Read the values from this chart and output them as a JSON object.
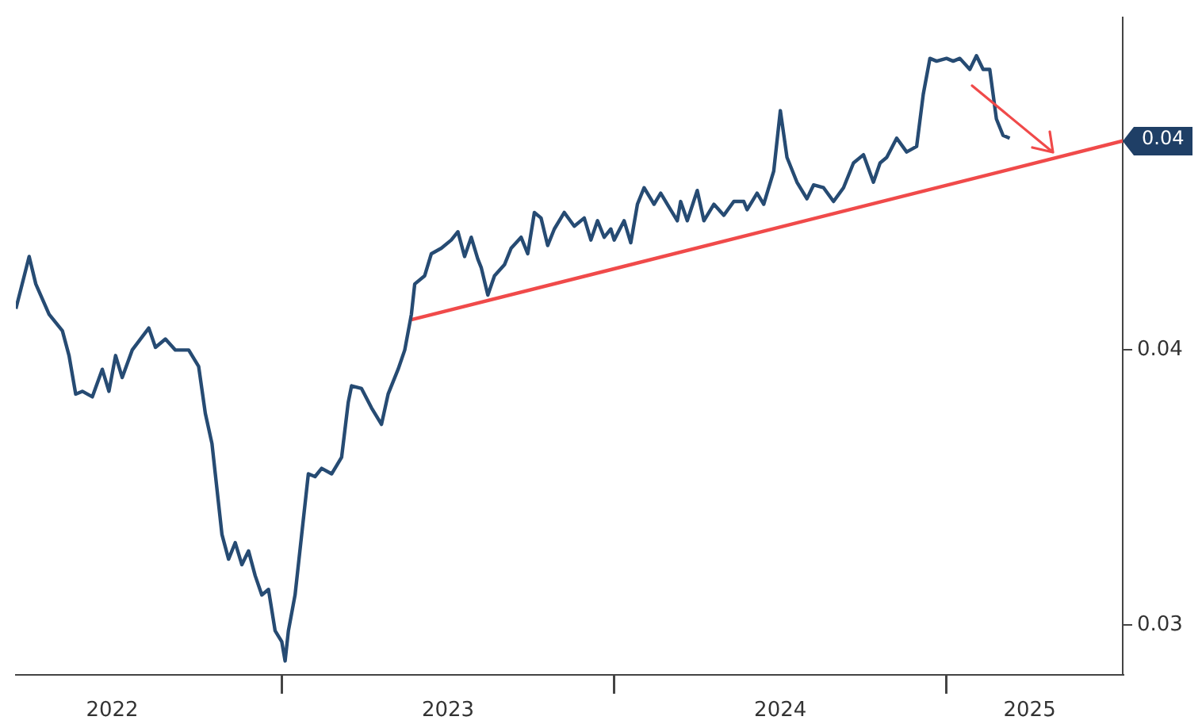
{
  "chart_data": {
    "type": "line",
    "xlim": [
      2022.2,
      2025.53
    ],
    "ylim": [
      0.0282,
      0.0521
    ],
    "xticks": [
      {
        "value": 2022.49,
        "label": "2022"
      },
      {
        "value": 2023,
        "label": null
      },
      {
        "value": 2023.5,
        "label": "2023"
      },
      {
        "value": 2024,
        "label": null
      },
      {
        "value": 2024.5,
        "label": "2024"
      },
      {
        "value": 2025,
        "label": null
      },
      {
        "value": 2025.25,
        "label": "2025"
      }
    ],
    "yticks": [
      0.04,
      0.03
    ],
    "grid": false,
    "legend": false,
    "marker": "none",
    "line_style": "solid",
    "annotations": [
      {
        "text": "0.04",
        "x": 2025.53,
        "y": 0.0476
      }
    ],
    "series": [
      {
        "color": "#264b73",
        "x": [
          2022.2,
          2022.24,
          2022.26,
          2022.3,
          2022.34,
          2022.36,
          2022.38,
          2022.4,
          2022.43,
          2022.46,
          2022.48,
          2022.5,
          2022.52,
          2022.55,
          2022.6,
          2022.62,
          2022.65,
          2022.68,
          2022.72,
          2022.75,
          2022.77,
          2022.79,
          2022.8,
          2022.82,
          2022.84,
          2022.86,
          2022.88,
          2022.9,
          2022.92,
          2022.94,
          2022.96,
          2022.98,
          2023.0,
          2023.01,
          2023.02,
          2023.04,
          2023.06,
          2023.08,
          2023.1,
          2023.12,
          2023.15,
          2023.18,
          2023.2,
          2023.21,
          2023.24,
          2023.27,
          2023.3,
          2023.32,
          2023.35,
          2023.37,
          2023.39,
          2023.4,
          2023.43,
          2023.45,
          2023.48,
          2023.51,
          2023.53,
          2023.55,
          2023.57,
          2023.59,
          2023.6,
          2023.62,
          2023.64,
          2023.67,
          2023.69,
          2023.72,
          2023.74,
          2023.76,
          2023.78,
          2023.8,
          2023.82,
          2023.85,
          2023.88,
          2023.91,
          2023.93,
          2023.95,
          2023.97,
          2023.99,
          2024.0,
          2024.03,
          2024.05,
          2024.07,
          2024.09,
          2024.12,
          2024.14,
          2024.16,
          2024.19,
          2024.2,
          2024.22,
          2024.25,
          2024.27,
          2024.3,
          2024.33,
          2024.36,
          2024.39,
          2024.4,
          2024.43,
          2024.45,
          2024.48,
          2024.5,
          2024.52,
          2024.55,
          2024.58,
          2024.6,
          2024.63,
          2024.66,
          2024.69,
          2024.72,
          2024.75,
          2024.78,
          2024.8,
          2024.82,
          2024.85,
          2024.88,
          2024.91,
          2024.93,
          2024.95,
          2024.97,
          2025.0,
          2025.02,
          2025.04,
          2025.07,
          2025.09,
          2025.11,
          2025.13,
          2025.15,
          2025.17,
          2025.19
        ],
        "values": [
          0.0415,
          0.0434,
          0.0424,
          0.0413,
          0.0407,
          0.0398,
          0.0384,
          0.0385,
          0.0383,
          0.0393,
          0.0385,
          0.0398,
          0.039,
          0.04,
          0.0408,
          0.0401,
          0.0404,
          0.04,
          0.04,
          0.0394,
          0.0377,
          0.0366,
          0.0355,
          0.0333,
          0.0324,
          0.033,
          0.0322,
          0.0327,
          0.0318,
          0.0311,
          0.0313,
          0.0298,
          0.0294,
          0.0287,
          0.0298,
          0.0311,
          0.0333,
          0.0355,
          0.0354,
          0.0357,
          0.0355,
          0.0361,
          0.0381,
          0.0387,
          0.0386,
          0.0379,
          0.0373,
          0.0384,
          0.0393,
          0.04,
          0.0413,
          0.0424,
          0.0427,
          0.0435,
          0.0437,
          0.044,
          0.0443,
          0.0434,
          0.0441,
          0.0433,
          0.043,
          0.042,
          0.0427,
          0.0431,
          0.0437,
          0.0441,
          0.0435,
          0.045,
          0.0448,
          0.0438,
          0.0444,
          0.045,
          0.0445,
          0.0448,
          0.044,
          0.0447,
          0.0441,
          0.0444,
          0.044,
          0.0447,
          0.0439,
          0.0453,
          0.0459,
          0.0453,
          0.0457,
          0.0453,
          0.0447,
          0.0454,
          0.0447,
          0.0458,
          0.0447,
          0.0453,
          0.0449,
          0.0454,
          0.0454,
          0.0451,
          0.0457,
          0.0453,
          0.0465,
          0.0487,
          0.047,
          0.0461,
          0.0455,
          0.046,
          0.0459,
          0.0454,
          0.0459,
          0.0468,
          0.0471,
          0.0461,
          0.0468,
          0.047,
          0.0477,
          0.0472,
          0.0474,
          0.0493,
          0.0506,
          0.0505,
          0.0506,
          0.0505,
          0.0506,
          0.0502,
          0.0507,
          0.0502,
          0.0502,
          0.0484,
          0.0478,
          0.0477
        ]
      },
      {
        "color": "#f04a4a",
        "x": [
          2023.39,
          2025.53
        ],
        "values": [
          0.0411,
          0.0476
        ]
      }
    ]
  }
}
